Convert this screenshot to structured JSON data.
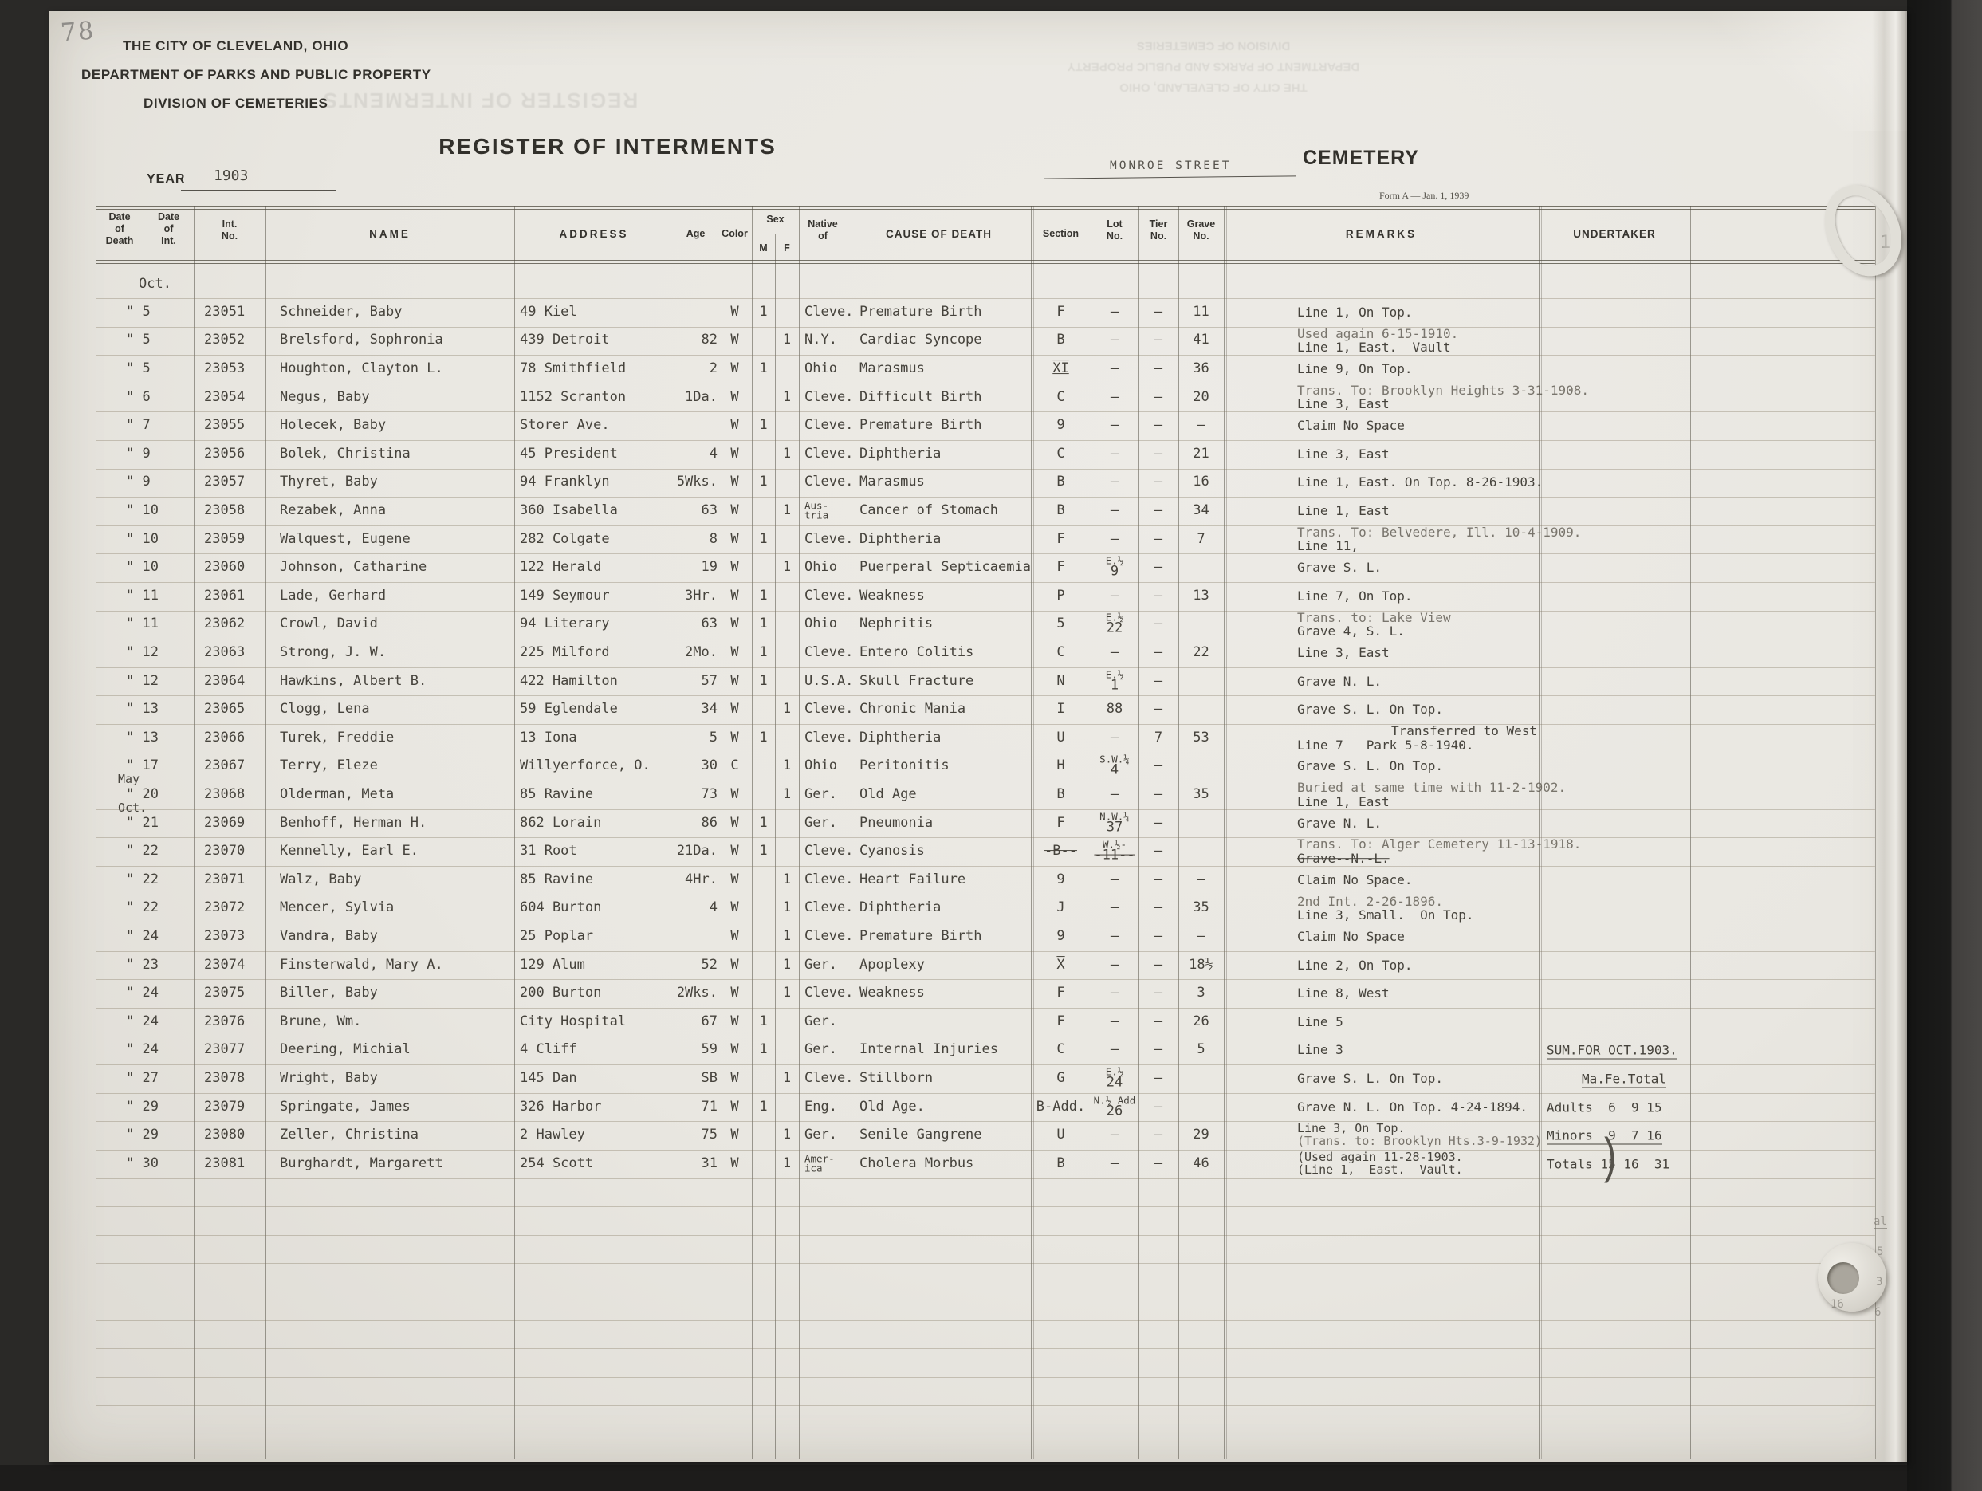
{
  "document": {
    "page_number": "78",
    "org_lines": [
      "THE CITY OF CLEVELAND, OHIO",
      "DEPARTMENT OF PARKS AND PUBLIC PROPERTY",
      "DIVISION OF CEMETERIES"
    ],
    "title": "REGISTER OF INTERMENTS",
    "year_label": "YEAR",
    "year_value": "1903",
    "cemetery_name": "MONROE STREET",
    "cemetery_label": "CEMETERY",
    "form_note": "Form A — Jan. 1, 1939",
    "margin_mark": "1",
    "large_paren": ")"
  },
  "ghost_fragments": [
    "al",
    "5",
    "3",
    "6",
    "16"
  ],
  "table": {
    "columns": [
      {
        "label": "Date\nof\nDeath"
      },
      {
        "label": "Date\nof\nInt."
      },
      {
        "label": "Int.\nNo."
      },
      {
        "label": "NAME"
      },
      {
        "label": "ADDRESS"
      },
      {
        "label": "Age"
      },
      {
        "label": "Color"
      },
      {
        "label": "Sex"
      },
      {
        "label": "M"
      },
      {
        "label": "F"
      },
      {
        "label": "Native\nof"
      },
      {
        "label": "CAUSE OF DEATH"
      },
      {
        "label": "Section"
      },
      {
        "label": "Lot\nNo."
      },
      {
        "label": "Tier\nNo."
      },
      {
        "label": "Grave\nNo."
      },
      {
        "label": "REMARKS"
      },
      {
        "label": "UNDERTAKER"
      }
    ],
    "month_header": "Oct.",
    "rows": [
      {
        "d": "\" 5",
        "no": "23051",
        "name": "Schneider, Baby",
        "addr": "49 Kiel",
        "age": "",
        "color": "W",
        "m": "1",
        "f": "",
        "nat": "Cleve.",
        "cause": "Premature Birth",
        "sec": "F",
        "sec_cls": "",
        "lot_top": "",
        "lot": "–",
        "lot_cls": "",
        "tier": "–",
        "grave": "11",
        "rem": [
          {
            "t": "Line 1, On Top.",
            "cls": ""
          }
        ]
      },
      {
        "d": "\" 5",
        "no": "23052",
        "name": "Brelsford, Sophronia",
        "addr": "439 Detroit",
        "age": "82",
        "color": "W",
        "m": "",
        "f": "1",
        "nat": "N.Y.",
        "cause": "Cardiac Syncope",
        "sec": "B",
        "sec_cls": "",
        "lot_top": "",
        "lot": "–",
        "lot_cls": "",
        "tier": "–",
        "grave": "41",
        "rem": [
          {
            "t": "Used again 6-15-1910.",
            "cls": "faint"
          },
          {
            "t": "Line 1, East.  Vault",
            "cls": ""
          }
        ]
      },
      {
        "d": "\" 5",
        "no": "23053",
        "name": "Houghton, Clayton L.",
        "addr": "78 Smithfield",
        "age": "2",
        "color": "W",
        "m": "1",
        "f": "",
        "nat": "Ohio",
        "cause": "Marasmus",
        "sec": "XI",
        "sec_cls": "ovl-unl",
        "lot_top": "",
        "lot": "–",
        "lot_cls": "",
        "tier": "–",
        "grave": "36",
        "rem": [
          {
            "t": "Line 9, On Top.",
            "cls": ""
          }
        ]
      },
      {
        "d": "\" 6",
        "no": "23054",
        "name": "Negus, Baby",
        "addr": "1152 Scranton",
        "age": "1Da.",
        "color": "W",
        "m": "",
        "f": "1",
        "nat": "Cleve.",
        "cause": "Difficult Birth",
        "sec": "C",
        "sec_cls": "",
        "lot_top": "",
        "lot": "–",
        "lot_cls": "",
        "tier": "–",
        "grave": "20",
        "rem": [
          {
            "t": "Trans. To: Brooklyn Heights 3-31-1908.",
            "cls": "faint"
          },
          {
            "t": "Line 3, East",
            "cls": ""
          }
        ]
      },
      {
        "d": "\" 7",
        "no": "23055",
        "name": "Holecek, Baby",
        "addr": "Storer Ave.",
        "age": "",
        "color": "W",
        "m": "1",
        "f": "",
        "nat": "Cleve.",
        "cause": "Premature Birth",
        "sec": "9",
        "sec_cls": "",
        "lot_top": "",
        "lot": "–",
        "lot_cls": "",
        "tier": "–",
        "grave": "–",
        "rem": [
          {
            "t": "Claim No Space",
            "cls": ""
          }
        ]
      },
      {
        "d": "\" 9",
        "no": "23056",
        "name": "Bolek, Christina",
        "addr": "45 President",
        "age": "4",
        "color": "W",
        "m": "",
        "f": "1",
        "nat": "Cleve.",
        "cause": "Diphtheria",
        "sec": "C",
        "sec_cls": "",
        "lot_top": "",
        "lot": "–",
        "lot_cls": "",
        "tier": "–",
        "grave": "21",
        "rem": [
          {
            "t": "Line 3, East",
            "cls": ""
          }
        ]
      },
      {
        "d": "\" 9",
        "no": "23057",
        "name": "Thyret, Baby",
        "addr": "94 Franklyn",
        "age": "5Wks.",
        "color": "W",
        "m": "1",
        "f": "",
        "nat": "Cleve.",
        "cause": "Marasmus",
        "sec": "B",
        "sec_cls": "",
        "lot_top": "",
        "lot": "–",
        "lot_cls": "",
        "tier": "–",
        "grave": "16",
        "rem": [
          {
            "t": "Line 1, East. On Top. 8-26-1903.",
            "cls": ""
          }
        ]
      },
      {
        "d": "\" 10",
        "no": "23058",
        "name": "Rezabek, Anna",
        "addr": "360 Isabella",
        "age": "63",
        "color": "W",
        "m": "",
        "f": "1",
        "nat": "Aus-\ntria",
        "cause": "Cancer of Stomach",
        "sec": "B",
        "sec_cls": "",
        "lot_top": "",
        "lot": "–",
        "lot_cls": "",
        "tier": "–",
        "grave": "34",
        "rem": [
          {
            "t": "Line 1, East",
            "cls": ""
          }
        ]
      },
      {
        "d": "\" 10",
        "no": "23059",
        "name": "Walquest, Eugene",
        "addr": "282 Colgate",
        "age": "8",
        "color": "W",
        "m": "1",
        "f": "",
        "nat": "Cleve.",
        "cause": "Diphtheria",
        "sec": "F",
        "sec_cls": "",
        "lot_top": "",
        "lot": "–",
        "lot_cls": "",
        "tier": "–",
        "grave": "7",
        "rem": [
          {
            "t": "Trans. To: Belvedere, Ill. 10-4-1909.",
            "cls": "faint"
          },
          {
            "t": "Line 11,",
            "cls": ""
          }
        ]
      },
      {
        "d": "\" 10",
        "no": "23060",
        "name": "Johnson, Catharine",
        "addr": "122 Herald",
        "age": "19",
        "color": "W",
        "m": "",
        "f": "1",
        "nat": "Ohio",
        "cause": "Puerperal Septicaemia",
        "sec": "F",
        "sec_cls": "",
        "lot_top": "E.½",
        "lot": "9",
        "lot_cls": "",
        "tier": "–",
        "grave": "",
        "rem": [
          {
            "t": "Grave S. L.",
            "cls": ""
          }
        ]
      },
      {
        "d": "\" 11",
        "no": "23061",
        "name": "Lade, Gerhard",
        "addr": "149 Seymour",
        "age": "3Hr.",
        "color": "W",
        "m": "1",
        "f": "",
        "nat": "Cleve.",
        "cause": "Weakness",
        "sec": "P",
        "sec_cls": "",
        "lot_top": "",
        "lot": "–",
        "lot_cls": "",
        "tier": "–",
        "grave": "13",
        "rem": [
          {
            "t": "Line 7, On Top.",
            "cls": ""
          }
        ]
      },
      {
        "d": "\" 11",
        "no": "23062",
        "name": "Crowl, David",
        "addr": "94 Literary",
        "age": "63",
        "color": "W",
        "m": "1",
        "f": "",
        "nat": "Ohio",
        "cause": "Nephritis",
        "sec": "5",
        "sec_cls": "",
        "lot_top": "E.½",
        "lot": "22",
        "lot_cls": "",
        "tier": "–",
        "grave": "",
        "rem": [
          {
            "t": "Trans. to: Lake View",
            "cls": "faint"
          },
          {
            "t": "Grave 4, S. L.",
            "cls": ""
          }
        ]
      },
      {
        "d": "\" 12",
        "no": "23063",
        "name": "Strong, J. W.",
        "addr": "225 Milford",
        "age": "2Mo.",
        "color": "W",
        "m": "1",
        "f": "",
        "nat": "Cleve.",
        "cause": "Entero Colitis",
        "sec": "C",
        "sec_cls": "",
        "lot_top": "",
        "lot": "–",
        "lot_cls": "",
        "tier": "–",
        "grave": "22",
        "rem": [
          {
            "t": "Line 3, East",
            "cls": ""
          }
        ]
      },
      {
        "d": "\" 12",
        "no": "23064",
        "name": "Hawkins, Albert B.",
        "addr": "422 Hamilton",
        "age": "57",
        "color": "W",
        "m": "1",
        "f": "",
        "nat": "U.S.A.",
        "cause": "Skull Fracture",
        "sec": "N",
        "sec_cls": "",
        "lot_top": "E.½",
        "lot": "1",
        "lot_cls": "",
        "tier": "–",
        "grave": "",
        "rem": [
          {
            "t": "Grave N. L.",
            "cls": ""
          }
        ]
      },
      {
        "d": "\" 13",
        "no": "23065",
        "name": "Clogg, Lena",
        "addr": "59 Eglendale",
        "age": "34",
        "color": "W",
        "m": "",
        "f": "1",
        "nat": "Cleve.",
        "cause": "Chronic Mania",
        "sec": "I",
        "sec_cls": "",
        "lot_top": "",
        "lot": "88",
        "lot_cls": "",
        "tier": "–",
        "grave": "",
        "rem": [
          {
            "t": "Grave S. L. On Top.",
            "cls": ""
          }
        ]
      },
      {
        "d": "\" 13",
        "no": "23066",
        "name": "Turek, Freddie",
        "addr": "13 Iona",
        "age": "5",
        "color": "W",
        "m": "1",
        "f": "",
        "nat": "Cleve.",
        "cause": "Diphtheria",
        "sec": "U",
        "sec_cls": "",
        "lot_top": "",
        "lot": "–",
        "lot_cls": "",
        "tier": "7",
        "grave": "53",
        "rem": [
          {
            "t": "Transferred to West",
            "cls": "indent"
          },
          {
            "t": "Line 7   Park 5-8-1940.",
            "cls": ""
          }
        ]
      },
      {
        "d": "\" 17",
        "no": "23067",
        "name": "Terry, Eleze",
        "addr": "Willyerforce, O.",
        "age": "30",
        "color": "C",
        "m": "",
        "f": "1",
        "nat": "Ohio",
        "cause": "Peritonitis",
        "sec": "H",
        "sec_cls": "",
        "lot_top": "S.W.¼",
        "lot": "4",
        "lot_cls": "",
        "tier": "–",
        "grave": "",
        "rem": [
          {
            "t": "Grave S. L. On Top.",
            "cls": ""
          }
        ]
      },
      {
        "month_note": "May",
        "d": "\" 20",
        "no": "23068",
        "name": "Olderman, Meta",
        "addr": "85 Ravine",
        "age": "73",
        "color": "W",
        "m": "",
        "f": "1",
        "nat": "Ger.",
        "cause": "Old Age",
        "sec": "B",
        "sec_cls": "",
        "lot_top": "",
        "lot": "–",
        "lot_cls": "",
        "tier": "–",
        "grave": "35",
        "rem": [
          {
            "t": "Buried at same time with 11-2-1902.",
            "cls": "faint"
          },
          {
            "t": "Line 1, East",
            "cls": ""
          }
        ]
      },
      {
        "month_note": "Oct.",
        "d": "\" 21",
        "no": "23069",
        "name": "Benhoff, Herman H.",
        "addr": "862 Lorain",
        "age": "86",
        "color": "W",
        "m": "1",
        "f": "",
        "nat": "Ger.",
        "cause": "Pneumonia",
        "sec": "F",
        "sec_cls": "",
        "lot_top": "N.W.¼",
        "lot": "37",
        "lot_cls": "",
        "tier": "–",
        "grave": "",
        "rem": [
          {
            "t": "Grave N. L.",
            "cls": ""
          }
        ]
      },
      {
        "d": "\" 22",
        "no": "23070",
        "name": "Kennelly, Earl E.",
        "addr": "31 Root",
        "age": "21Da.",
        "color": "W",
        "m": "1",
        "f": "",
        "nat": "Cleve.",
        "cause": "Cyanosis",
        "sec": "-B--",
        "sec_cls": "strike",
        "lot_top": "W.½-",
        "lot": "-11--",
        "lot_cls": "strike",
        "tier": "–",
        "grave": "",
        "rem": [
          {
            "t": "Trans. To: Alger Cemetery 11-13-1918.",
            "cls": "faint"
          },
          {
            "t": "Grave--N.-L.",
            "cls": "strike"
          }
        ]
      },
      {
        "d": "\" 22",
        "no": "23071",
        "name": "Walz, Baby",
        "addr": "85 Ravine",
        "age": "4Hr.",
        "color": "W",
        "m": "",
        "f": "1",
        "nat": "Cleve.",
        "cause": "Heart Failure",
        "sec": "9",
        "sec_cls": "",
        "lot_top": "",
        "lot": "–",
        "lot_cls": "",
        "tier": "–",
        "grave": "–",
        "rem": [
          {
            "t": "Claim No Space.",
            "cls": ""
          }
        ]
      },
      {
        "d": "\" 22",
        "no": "23072",
        "name": "Mencer, Sylvia",
        "addr": "604 Burton",
        "age": "4",
        "color": "W",
        "m": "",
        "f": "1",
        "nat": "Cleve.",
        "cause": "Diphtheria",
        "sec": "J",
        "sec_cls": "",
        "lot_top": "",
        "lot": "–",
        "lot_cls": "",
        "tier": "–",
        "grave": "35",
        "rem": [
          {
            "t": "2nd Int. 2-26-1896.",
            "cls": "faint"
          },
          {
            "t": "Line 3, Small.  On Top.",
            "cls": ""
          }
        ]
      },
      {
        "d": "\" 24",
        "no": "23073",
        "name": "Vandra, Baby",
        "addr": "25 Poplar",
        "age": "",
        "color": "W",
        "m": "",
        "f": "1",
        "nat": "Cleve.",
        "cause": "Premature Birth",
        "sec": "9",
        "sec_cls": "",
        "lot_top": "",
        "lot": "–",
        "lot_cls": "",
        "tier": "–",
        "grave": "–",
        "rem": [
          {
            "t": "Claim No Space",
            "cls": ""
          }
        ]
      },
      {
        "d": "\" 23",
        "no": "23074",
        "name": "Finsterwald, Mary A.",
        "addr": "129 Alum",
        "age": "52",
        "color": "W",
        "m": "",
        "f": "1",
        "nat": "Ger.",
        "cause": "Apoplexy",
        "sec": "X",
        "sec_cls": "ovl",
        "lot_top": "",
        "lot": "–",
        "lot_cls": "",
        "tier": "–",
        "grave": "18½",
        "rem": [
          {
            "t": "Line 2, On Top.",
            "cls": ""
          }
        ]
      },
      {
        "d": "\" 24",
        "no": "23075",
        "name": "Biller, Baby",
        "addr": "200 Burton",
        "age": "2Wks.",
        "color": "W",
        "m": "",
        "f": "1",
        "nat": "Cleve.",
        "cause": "Weakness",
        "sec": "F",
        "sec_cls": "",
        "lot_top": "",
        "lot": "–",
        "lot_cls": "",
        "tier": "–",
        "grave": "3",
        "rem": [
          {
            "t": "Line 8, West",
            "cls": ""
          }
        ]
      },
      {
        "d": "\" 24",
        "no": "23076",
        "name": "Brune, Wm.",
        "addr": "City Hospital",
        "age": "67",
        "color": "W",
        "m": "1",
        "f": "",
        "nat": "Ger.",
        "cause": "",
        "sec": "F",
        "sec_cls": "",
        "lot_top": "",
        "lot": "–",
        "lot_cls": "",
        "tier": "–",
        "grave": "26",
        "rem": [
          {
            "t": "Line 5",
            "cls": ""
          }
        ]
      },
      {
        "d": "\" 24",
        "no": "23077",
        "name": "Deering, Michial",
        "addr": "4 Cliff",
        "age": "59",
        "color": "W",
        "m": "1",
        "f": "",
        "nat": "Ger.",
        "cause": "Internal Injuries",
        "sec": "C",
        "sec_cls": "",
        "lot_top": "",
        "lot": "–",
        "lot_cls": "",
        "tier": "–",
        "grave": "5",
        "rem": [
          {
            "t": "Line 3",
            "cls": ""
          }
        ]
      },
      {
        "d": "\" 27",
        "no": "23078",
        "name": "Wright, Baby",
        "addr": "145 Dan",
        "age": "SB",
        "color": "W",
        "m": "",
        "f": "1",
        "nat": "Cleve.",
        "cause": "Stillborn",
        "sec": "G",
        "sec_cls": "",
        "lot_top": "E.½",
        "lot": "24",
        "lot_cls": "",
        "tier": "–",
        "grave": "",
        "rem": [
          {
            "t": "Grave S. L. On Top.",
            "cls": ""
          }
        ]
      },
      {
        "d": "\" 29",
        "no": "23079",
        "name": "Springate, James",
        "addr": "326 Harbor",
        "age": "71",
        "color": "W",
        "m": "1",
        "f": "",
        "nat": "Eng.",
        "cause": "Old Age.",
        "sec": "B-Add.",
        "sec_cls": "",
        "lot_top": "N.½ Add",
        "lot": "26",
        "lot_cls": "",
        "tier": "–",
        "grave": "",
        "rem": [
          {
            "t": "Grave N. L. On Top. 4-24-1894.",
            "cls": ""
          }
        ]
      },
      {
        "d": "\" 29",
        "no": "23080",
        "name": "Zeller, Christina",
        "addr": "2 Hawley",
        "age": "75",
        "color": "W",
        "m": "",
        "f": "1",
        "nat": "Ger.",
        "cause": "Senile Gangrene",
        "sec": "U",
        "sec_cls": "",
        "lot_top": "",
        "lot": "–",
        "lot_cls": "",
        "tier": "–",
        "grave": "29",
        "rem": [
          {
            "t": "Line 3, On Top.",
            "cls": "tight"
          },
          {
            "t": "(Trans. to: Brooklyn Hts.3-9-1932)",
            "cls": "faint tight"
          }
        ]
      },
      {
        "d": "\" 30",
        "no": "23081",
        "name": "Burghardt, Margarett",
        "addr": "254 Scott",
        "age": "31",
        "color": "W",
        "m": "",
        "f": "1",
        "nat": "Amer-\nica",
        "cause": "Cholera Morbus",
        "sec": "B",
        "sec_cls": "",
        "lot_top": "",
        "lot": "–",
        "lot_cls": "",
        "tier": "–",
        "grave": "46",
        "rem": [
          {
            "t": "(Used again 11-28-1903.",
            "cls": "tight"
          },
          {
            "t": "(Line 1,  East.  Vault.",
            "cls": "tight"
          }
        ]
      }
    ],
    "summary": {
      "lines": [
        {
          "text": "SUM.FOR OCT.1903.",
          "underline": true,
          "indent": 0
        },
        {
          "text": "Ma.Fe.Total",
          "underline": true,
          "indent": 44
        },
        {
          "text": "Adults  6  9 15",
          "underline": false,
          "indent": 0
        },
        {
          "text": "Minors  9  7 16",
          "underline": true,
          "indent": 0
        },
        {
          "text": "Totals 15 16  31",
          "underline": false,
          "indent": 0
        }
      ]
    }
  }
}
